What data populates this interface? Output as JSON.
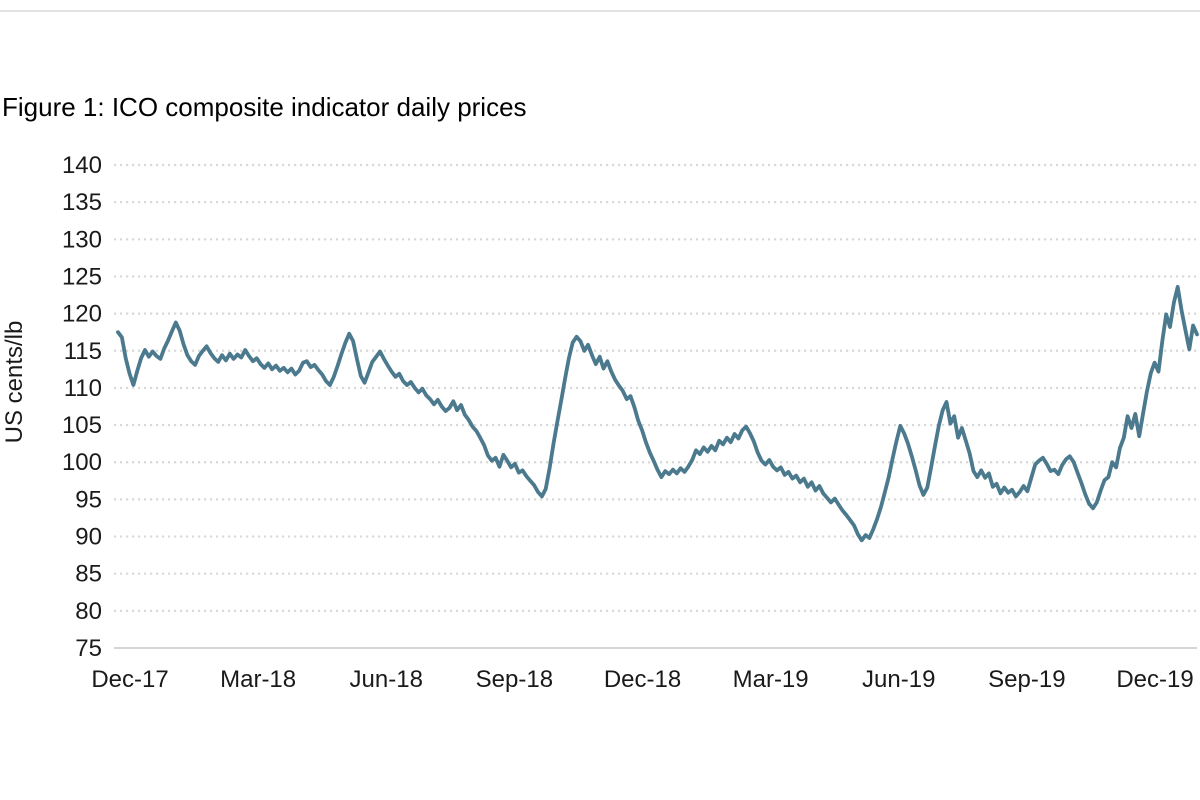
{
  "figure": {
    "title": "Figure 1: ICO composite indicator daily prices"
  },
  "colors": {
    "line": "#4B798D",
    "gridline": "#D9D9D9",
    "axis_line": "#C9C9C9",
    "text": "#1A1A1A",
    "top_divider": "#E3E3E3",
    "background": "#FFFFFF"
  },
  "chart_data": {
    "type": "line",
    "title": "Figure 1: ICO composite indicator daily prices",
    "xlabel": "",
    "ylabel": "US cents/lb",
    "ylim": [
      75,
      140
    ],
    "y_ticks": [
      75,
      80,
      85,
      90,
      95,
      100,
      105,
      110,
      115,
      120,
      125,
      130,
      135,
      140
    ],
    "x_labels": [
      "Dec-17",
      "Mar-18",
      "Jun-18",
      "Sep-18",
      "Dec-18",
      "Mar-19",
      "Jun-19",
      "Sep-19",
      "Dec-19"
    ],
    "grid": "horizontal-dotted",
    "legend_position": "none",
    "series": [
      {
        "name": "ICO composite indicator daily price",
        "unit": "US cents/lb",
        "values": [
          117.5,
          116.8,
          114.0,
          111.9,
          110.4,
          112.3,
          114.0,
          115.1,
          114.2,
          114.9,
          114.3,
          113.9,
          115.3,
          116.4,
          117.6,
          118.8,
          117.7,
          115.9,
          114.4,
          113.6,
          113.1,
          114.3,
          115.0,
          115.6,
          114.7,
          114.0,
          113.5,
          114.4,
          113.7,
          114.6,
          113.9,
          114.5,
          114.1,
          115.1,
          114.3,
          113.6,
          114.0,
          113.2,
          112.7,
          113.3,
          112.5,
          113.0,
          112.3,
          112.7,
          112.1,
          112.6,
          111.8,
          112.3,
          113.4,
          113.6,
          112.8,
          113.1,
          112.4,
          111.8,
          110.9,
          110.4,
          111.5,
          113.0,
          114.6,
          116.1,
          117.3,
          116.3,
          113.9,
          111.6,
          110.7,
          112.1,
          113.5,
          114.2,
          114.9,
          113.9,
          113.0,
          112.2,
          111.5,
          111.9,
          110.9,
          110.4,
          110.8,
          110.0,
          109.4,
          109.9,
          109.0,
          108.5,
          107.8,
          108.4,
          107.5,
          106.9,
          107.3,
          108.2,
          107.0,
          107.7,
          106.4,
          105.7,
          104.8,
          104.2,
          103.3,
          102.3,
          100.9,
          100.2,
          100.6,
          99.4,
          101.0,
          100.2,
          99.3,
          99.8,
          98.6,
          98.9,
          98.1,
          97.5,
          96.9,
          96.0,
          95.4,
          96.4,
          99.2,
          102.5,
          105.4,
          108.3,
          111.2,
          114.0,
          116.1,
          116.9,
          116.3,
          115.0,
          115.8,
          114.4,
          113.2,
          114.2,
          112.6,
          113.6,
          112.2,
          111.1,
          110.3,
          109.6,
          108.5,
          108.9,
          107.4,
          105.6,
          104.3,
          102.7,
          101.3,
          100.2,
          99.0,
          98.0,
          98.8,
          98.4,
          99.0,
          98.5,
          99.2,
          98.7,
          99.4,
          100.3,
          101.6,
          101.1,
          102.0,
          101.4,
          102.2,
          101.6,
          102.9,
          102.4,
          103.3,
          102.7,
          103.8,
          103.2,
          104.3,
          104.8,
          103.9,
          102.8,
          101.3,
          100.2,
          99.7,
          100.3,
          99.4,
          98.9,
          99.3,
          98.3,
          98.7,
          97.8,
          98.2,
          97.3,
          97.8,
          96.7,
          97.3,
          96.2,
          96.8,
          95.8,
          95.2,
          94.6,
          95.1,
          94.3,
          93.5,
          92.9,
          92.2,
          91.5,
          90.3,
          89.5,
          90.2,
          89.8,
          91.0,
          92.4,
          94.0,
          96.0,
          98.0,
          100.5,
          102.8,
          104.9,
          103.9,
          102.5,
          100.8,
          98.9,
          96.9,
          95.6,
          96.6,
          99.3,
          102.2,
          104.9,
          107.0,
          108.1,
          105.2,
          106.2,
          103.3,
          104.6,
          102.9,
          101.2,
          98.8,
          98.0,
          98.9,
          97.9,
          98.5,
          96.7,
          97.1,
          95.8,
          96.6,
          95.9,
          96.3,
          95.4,
          96.0,
          96.8,
          96.1,
          97.9,
          99.7,
          100.2,
          100.6,
          99.8,
          98.8,
          99.0,
          98.4,
          99.6,
          100.4,
          100.8,
          100.0,
          98.6,
          97.2,
          95.7,
          94.4,
          93.8,
          94.6,
          96.2,
          97.6,
          98.0,
          100.0,
          99.3,
          101.9,
          103.3,
          106.2,
          104.6,
          106.5,
          103.5,
          106.5,
          109.5,
          112.0,
          113.4,
          112.2,
          116.3,
          119.9,
          118.2,
          121.5,
          123.6,
          120.4,
          117.8,
          115.2,
          118.4,
          117.2
        ]
      }
    ]
  }
}
